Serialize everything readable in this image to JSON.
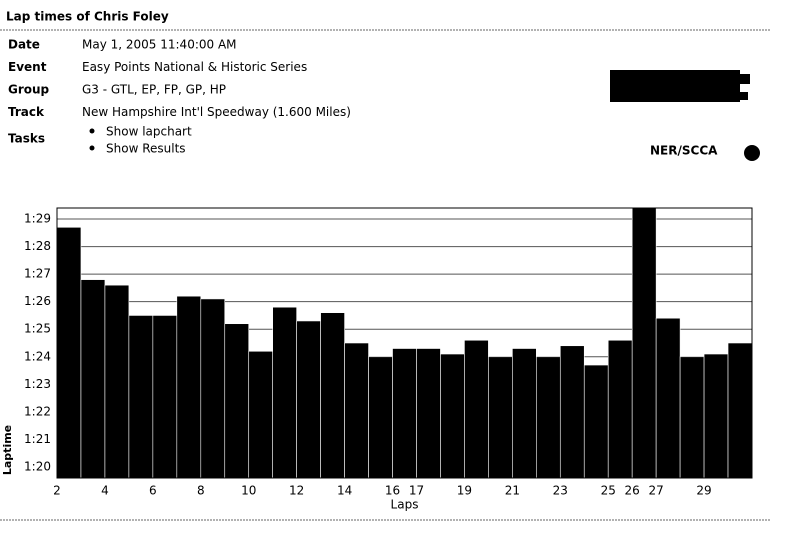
{
  "header": {
    "title": "Lap times of Chris Foley"
  },
  "details": [
    {
      "label": "Date",
      "value": "May 1, 2005 11:40:00 AM"
    },
    {
      "label": "Event",
      "value": "Easy Points National & Historic Series"
    },
    {
      "label": "Group",
      "value": "G3 - GTL, EP, FP, GP, HP"
    },
    {
      "label": "Track",
      "value": "New Hampshire Int'l Speedway (1.600 Miles)"
    }
  ],
  "tasks": {
    "label": "Tasks",
    "items": [
      "Show lapchart",
      "Show Results"
    ]
  },
  "organization": "NER/SCCA",
  "chart_data": {
    "type": "bar",
    "x_label": "Laps",
    "y_label": "Laptime",
    "categories": [
      "2",
      null,
      "4",
      null,
      "6",
      null,
      "8",
      null,
      "10",
      null,
      "12",
      null,
      "14",
      null,
      "16",
      "17",
      null,
      "19",
      null,
      "21",
      null,
      "23",
      null,
      "25",
      "26",
      "27",
      null,
      "29",
      null
    ],
    "values": [
      88.7,
      86.8,
      86.6,
      85.5,
      85.5,
      86.2,
      86.1,
      85.2,
      84.2,
      85.8,
      85.3,
      85.6,
      84.5,
      84.0,
      84.3,
      84.3,
      84.1,
      84.6,
      84.0,
      84.3,
      84.0,
      84.4,
      83.7,
      84.6,
      89.6,
      85.4,
      84.0,
      84.1,
      84.5
    ],
    "color": "#000000",
    "ylim": [
      79.6,
      89.4
    ],
    "yticks": [
      {
        "value": 80,
        "label": "1:20"
      },
      {
        "value": 81,
        "label": "1:21"
      },
      {
        "value": 82,
        "label": "1:22"
      },
      {
        "value": 83,
        "label": "1:23"
      },
      {
        "value": 84,
        "label": "1:24"
      },
      {
        "value": 85,
        "label": "1:25"
      },
      {
        "value": 86,
        "label": "1:26"
      },
      {
        "value": 87,
        "label": "1:27"
      },
      {
        "value": 88,
        "label": "1:28"
      },
      {
        "value": 89,
        "label": "1:29"
      }
    ],
    "grid": true
  }
}
